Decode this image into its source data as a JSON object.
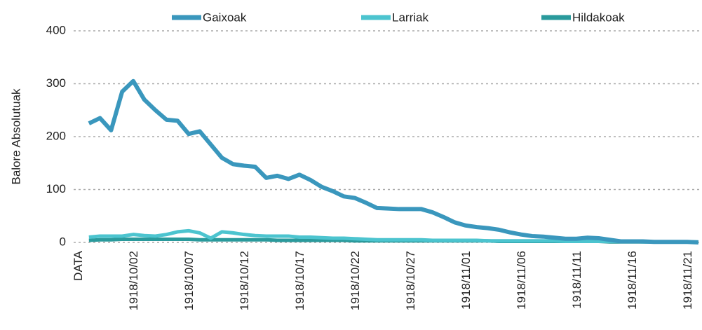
{
  "chart_data": {
    "type": "line",
    "y_label": "Balore Absolutuak",
    "categories": [
      "DATA",
      null,
      null,
      null,
      null,
      "1918/10/02",
      null,
      null,
      null,
      null,
      "1918/10/07",
      null,
      null,
      null,
      null,
      "1918/10/12",
      null,
      null,
      null,
      null,
      "1918/10/17",
      null,
      null,
      null,
      null,
      "1918/10/22",
      null,
      null,
      null,
      null,
      "1918/10/27",
      null,
      null,
      null,
      null,
      "1918/11/01",
      null,
      null,
      null,
      null,
      "1918/11/06",
      null,
      null,
      null,
      null,
      "1918/11/11",
      null,
      null,
      null,
      null,
      "1918/11/16",
      null,
      null,
      null,
      null,
      "1918/11/21",
      null
    ],
    "series": [
      {
        "name": "Gaixoak",
        "color": "#3a97bd",
        "values": [
          null,
          225,
          235,
          212,
          285,
          305,
          270,
          250,
          232,
          230,
          205,
          210,
          185,
          160,
          148,
          145,
          143,
          122,
          126,
          120,
          128,
          118,
          105,
          97,
          87,
          84,
          75,
          65,
          64,
          63,
          63,
          63,
          57,
          48,
          38,
          32,
          29,
          27,
          24,
          19,
          15,
          12,
          11,
          9,
          7,
          7,
          9,
          8,
          5,
          2,
          2,
          2,
          1,
          1,
          1,
          1,
          0
        ]
      },
      {
        "name": "Larriak",
        "color": "#4cc4cf",
        "values": [
          null,
          10,
          12,
          12,
          12,
          15,
          13,
          12,
          15,
          20,
          22,
          18,
          8,
          20,
          18,
          15,
          13,
          12,
          12,
          12,
          10,
          10,
          9,
          8,
          8,
          7,
          6,
          5,
          5,
          5,
          5,
          5,
          4,
          4,
          4,
          4,
          4,
          3,
          3,
          3,
          3,
          3,
          3,
          3,
          2,
          2,
          2,
          2,
          2,
          2,
          2,
          1,
          1,
          1,
          1,
          1,
          1
        ]
      },
      {
        "name": "Hildakoak",
        "color": "#2a9a9c",
        "values": [
          null,
          4,
          5,
          5,
          6,
          6,
          6,
          6,
          6,
          6,
          6,
          5,
          5,
          5,
          5,
          5,
          5,
          5,
          4,
          4,
          4,
          4,
          4,
          4,
          4,
          3,
          3,
          3,
          3,
          3,
          3,
          3,
          3,
          3,
          3,
          3,
          3,
          3,
          2,
          2,
          2,
          2,
          2,
          2,
          2,
          2,
          2,
          2,
          1,
          1,
          1,
          1,
          1,
          1,
          1,
          1,
          0
        ]
      }
    ],
    "ylim": [
      0,
      400
    ],
    "yticks": [
      0,
      100,
      200,
      300,
      400
    ],
    "grid": true,
    "legend": "top"
  }
}
